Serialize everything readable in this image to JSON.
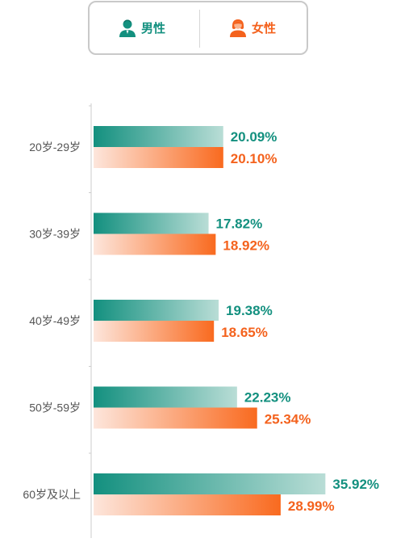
{
  "legend": {
    "male_label": "男性",
    "female_label": "女性",
    "male_icon": "male-user-icon",
    "female_icon": "female-user-icon"
  },
  "colors": {
    "male": "#13907f",
    "male_light": "#b9ddd6",
    "female": "#f96a1f",
    "female_light": "#fde6dc",
    "male_text": "#13907f",
    "female_text": "#f4621d",
    "axis": "#cccccc",
    "tick_label": "#555555"
  },
  "chart_data": {
    "type": "bar",
    "orientation": "horizontal",
    "categories": [
      "20岁-29岁",
      "30岁-39岁",
      "40岁-49岁",
      "50岁-59岁",
      "60岁及以上"
    ],
    "series": [
      {
        "name": "男性",
        "values": [
          20.09,
          17.82,
          19.38,
          22.23,
          35.92
        ],
        "labels": [
          "20.09%",
          "17.82%",
          "19.38%",
          "22.23%",
          "35.92%"
        ]
      },
      {
        "name": "女性",
        "values": [
          20.1,
          18.92,
          18.65,
          25.34,
          28.99
        ],
        "labels": [
          "20.10%",
          "18.92%",
          "18.65%",
          "25.34%",
          "28.99%"
        ]
      }
    ],
    "legend_position": "top",
    "grid": false
  }
}
